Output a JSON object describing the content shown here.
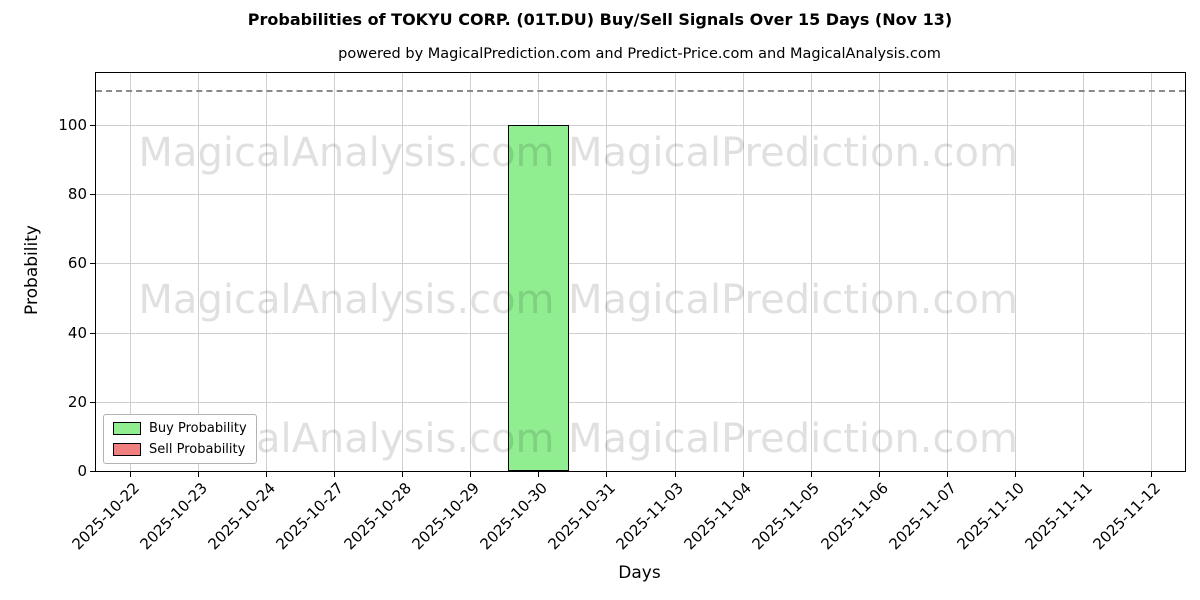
{
  "title": "Probabilities of TOKYU CORP. (01T.DU) Buy/Sell Signals Over 15 Days (Nov 13)",
  "subtitle": "powered by MagicalPrediction.com and Predict-Price.com and MagicalAnalysis.com",
  "watermarks": [
    "MagicalAnalysis.com",
    "MagicalPrediction.com"
  ],
  "chart_data": {
    "type": "bar",
    "title": "Probabilities of TOKYU CORP. (01T.DU) Buy/Sell Signals Over 15 Days (Nov 13)",
    "subtitle": "powered by MagicalPrediction.com and Predict-Price.com and MagicalAnalysis.com",
    "xlabel": "Days",
    "ylabel": "Probability",
    "categories": [
      "2025-10-22",
      "2025-10-23",
      "2025-10-24",
      "2025-10-27",
      "2025-10-28",
      "2025-10-29",
      "2025-10-30",
      "2025-10-31",
      "2025-11-03",
      "2025-11-04",
      "2025-11-05",
      "2025-11-06",
      "2025-11-07",
      "2025-11-10",
      "2025-11-11",
      "2025-11-12"
    ],
    "series": [
      {
        "name": "Buy Probability",
        "color": "#90ee90",
        "values": [
          0,
          0,
          0,
          0,
          0,
          0,
          100,
          0,
          0,
          0,
          0,
          0,
          0,
          0,
          0,
          0
        ]
      },
      {
        "name": "Sell Probability",
        "color": "#f08080",
        "values": [
          0,
          0,
          0,
          0,
          0,
          0,
          0,
          0,
          0,
          0,
          0,
          0,
          0,
          0,
          0,
          0
        ]
      }
    ],
    "ylim": [
      0,
      115
    ],
    "yticks": [
      0,
      20,
      40,
      60,
      80,
      100
    ],
    "dashed_line_y": 110,
    "grid": true,
    "bar_edge_color": "#000000",
    "legend_position": "lower left"
  }
}
